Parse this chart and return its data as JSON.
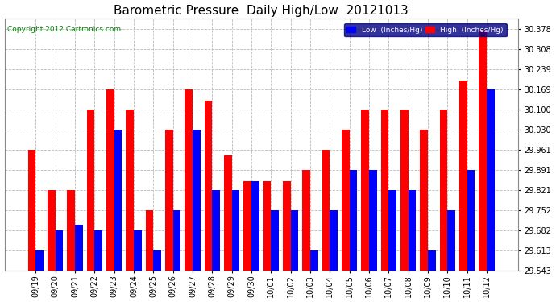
{
  "title": "Barometric Pressure  Daily High/Low  20121013",
  "copyright": "Copyright 2012 Cartronics.com",
  "legend_low": "Low  (Inches/Hg)",
  "legend_high": "High  (Inches/Hg)",
  "dates": [
    "09/19",
    "09/20",
    "09/21",
    "09/22",
    "09/23",
    "09/24",
    "09/25",
    "09/26",
    "09/27",
    "09/28",
    "09/29",
    "09/30",
    "10/01",
    "10/02",
    "10/03",
    "10/04",
    "10/05",
    "10/06",
    "10/07",
    "10/08",
    "10/09",
    "10/10",
    "10/11",
    "10/12"
  ],
  "high_values": [
    29.961,
    29.821,
    29.821,
    30.1,
    30.169,
    30.1,
    29.752,
    30.03,
    30.169,
    30.13,
    29.94,
    29.852,
    29.852,
    29.852,
    29.891,
    29.961,
    30.03,
    30.1,
    30.1,
    30.1,
    30.03,
    30.1,
    30.2,
    30.378
  ],
  "low_values": [
    29.613,
    29.682,
    29.7,
    29.682,
    30.03,
    29.682,
    29.613,
    29.752,
    30.03,
    29.821,
    29.821,
    29.852,
    29.752,
    29.752,
    29.613,
    29.752,
    29.891,
    29.891,
    29.821,
    29.821,
    29.613,
    29.752,
    29.891,
    30.169
  ],
  "ylim_min": 29.543,
  "ylim_max": 30.413,
  "yticks": [
    29.543,
    29.613,
    29.682,
    29.752,
    29.821,
    29.891,
    29.961,
    30.03,
    30.1,
    30.169,
    30.239,
    30.308,
    30.378
  ],
  "bar_width": 0.4,
  "high_color": "#ff0000",
  "low_color": "#0000ff",
  "bg_color": "#ffffff",
  "grid_color": "#bbbbbb",
  "title_fontsize": 11,
  "tick_fontsize": 7
}
